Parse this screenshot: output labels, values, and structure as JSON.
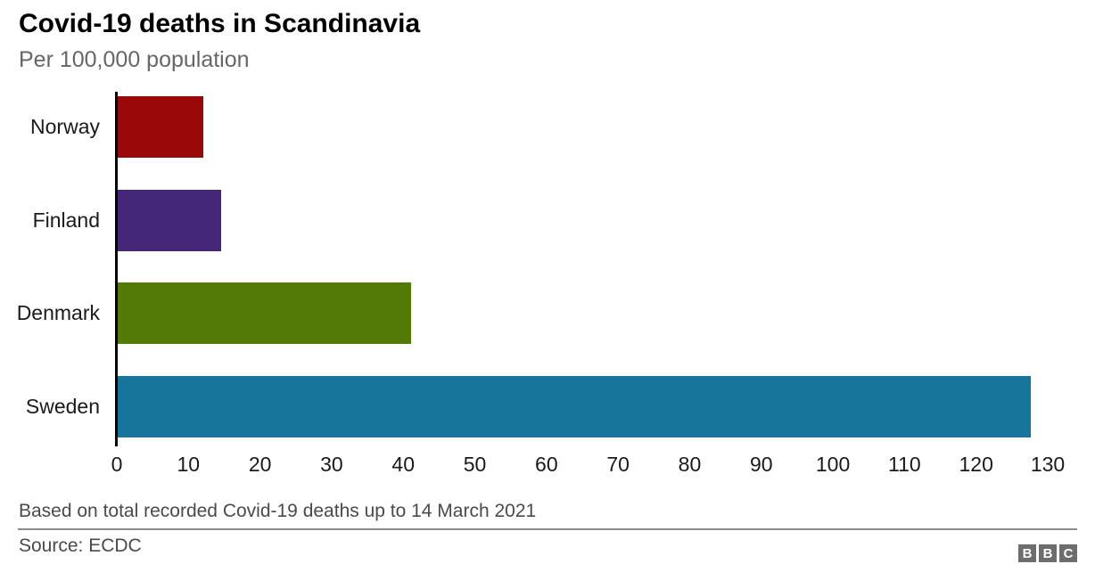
{
  "header": {
    "title": "Covid-19 deaths in Scandinavia",
    "subtitle": "Per 100,000 population"
  },
  "chart_data": {
    "type": "bar",
    "orientation": "horizontal",
    "title": "Covid-19 deaths in Scandinavia",
    "subtitle": "Per 100,000 population",
    "categories": [
      "Norway",
      "Finland",
      "Denmark",
      "Sweden"
    ],
    "values": [
      12,
      14.5,
      41,
      127.5
    ],
    "bar_colors": [
      "#9a0909",
      "#45277a",
      "#537a06",
      "#17749a"
    ],
    "xlabel": "",
    "ylabel": "",
    "xlim": [
      0,
      130
    ],
    "xticks": [
      0,
      10,
      20,
      30,
      40,
      50,
      60,
      70,
      80,
      90,
      100,
      110,
      120,
      130
    ],
    "grid": false,
    "legend": "none",
    "axis_spine_color": "#000000"
  },
  "footer": {
    "note": "Based on total recorded Covid-19 deaths up to 14 March 2021",
    "source": "Source: ECDC"
  },
  "logo": {
    "letters": [
      "B",
      "B",
      "C"
    ],
    "box_color": "#6d6d6d",
    "letter_color": "#ffffff"
  }
}
